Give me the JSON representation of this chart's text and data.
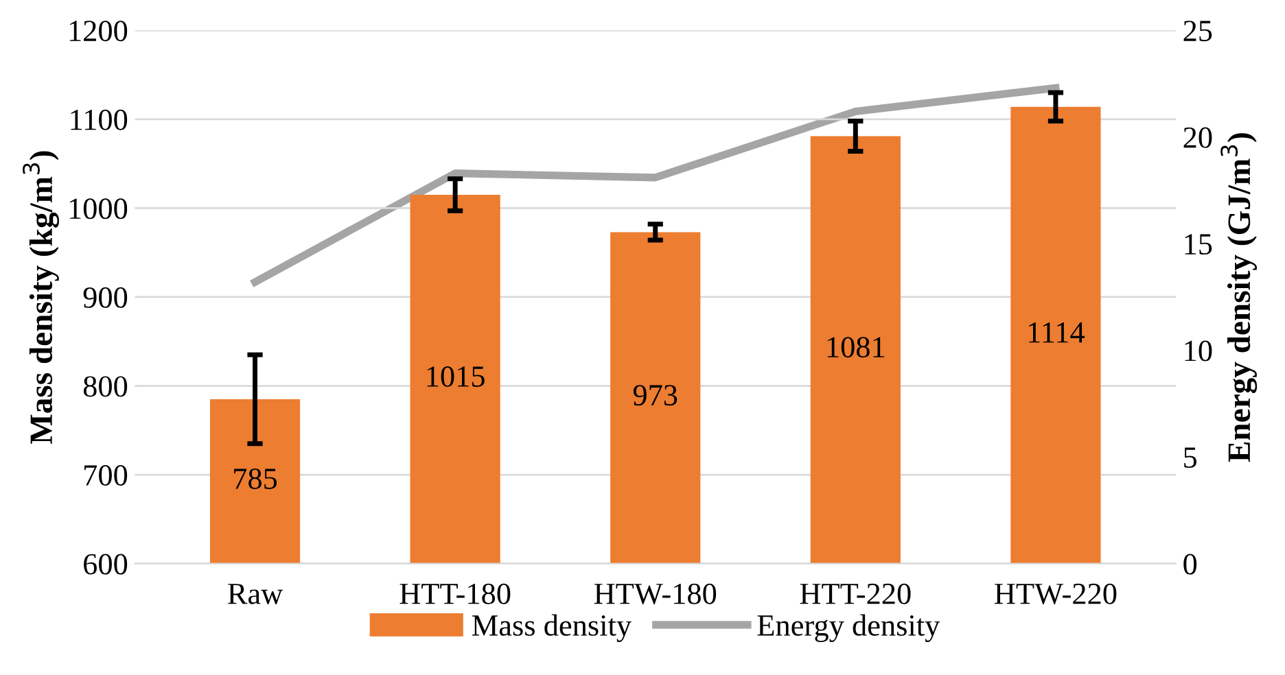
{
  "chart_data": {
    "type": "bar",
    "categories": [
      "Raw",
      "HTT-180",
      "HTW-180",
      "HTT-220",
      "HTW-220"
    ],
    "ylabel": "Mass density (kg/m$^{3}$)",
    "y2label": "Energy density (GJ/m$^{3}$)",
    "series": [
      {
        "name": "Mass density",
        "color": "#ed7d31",
        "values": [
          785,
          1015,
          973,
          1081,
          1114
        ],
        "errors": [
          50,
          18,
          9,
          17,
          16
        ],
        "value_labels": [
          "785",
          "1015",
          "973",
          "1081",
          "1114"
        ]
      },
      {
        "name": "Energy density",
        "type": "line",
        "axis": "y2",
        "color": "#a5a5a5",
        "values": [
          13.2,
          18.3,
          18.1,
          21.2,
          22.3
        ]
      }
    ],
    "ylim": [
      600,
      1200
    ],
    "yticks": [
      600,
      700,
      800,
      900,
      1000,
      1100,
      1200
    ],
    "y2lim": [
      0,
      25
    ],
    "y2ticks": [
      0,
      5,
      10,
      15,
      20,
      25
    ],
    "grid": "y",
    "legend": "bottom",
    "marker": "none",
    "line_style": "solid"
  }
}
